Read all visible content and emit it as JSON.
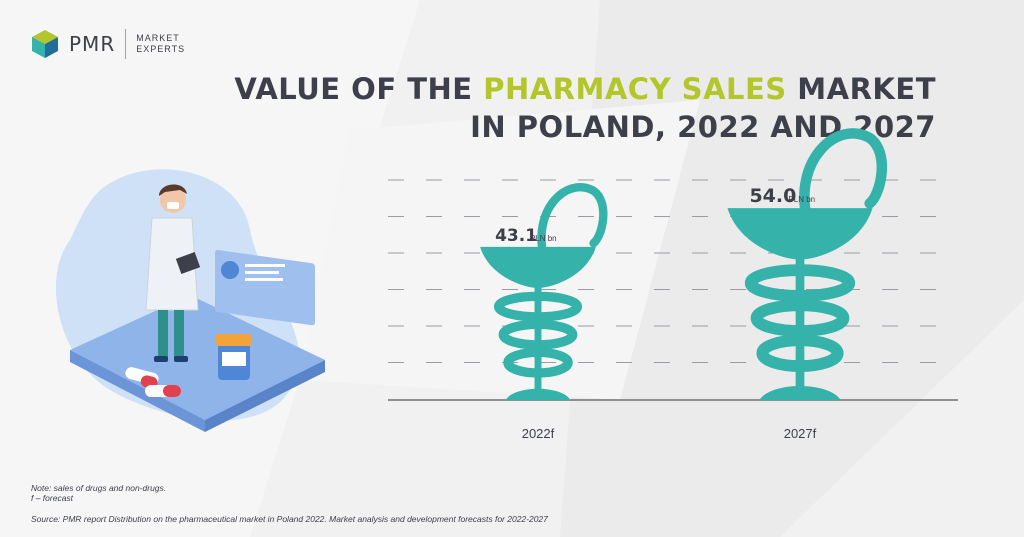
{
  "brand": {
    "logo_name": "PMR",
    "logo_sub_line1": "MARKET",
    "logo_sub_line2": "EXPERTS"
  },
  "title": {
    "line1_pre": "VALUE OF THE ",
    "line1_highlight": "PHARMACY SALES",
    "line1_post": " MARKET",
    "line2": "IN POLAND, 2022 AND 2027"
  },
  "chart_data": {
    "type": "bar",
    "categories": [
      "2022f",
      "2027f"
    ],
    "values": [
      43.1,
      54.0
    ],
    "value_labels": [
      "43.1",
      "54.0"
    ],
    "unit": "PLN bn",
    "title": "VALUE OF THE PHARMACY SALES MARKET IN POLAND, 2022 AND 2027",
    "xlabel": "",
    "ylabel": "",
    "ylim": [
      0,
      60
    ],
    "grid": true,
    "legend": "none",
    "mark_color": "#35b3aa",
    "highlight_color": "#b3c62b"
  },
  "notes": {
    "note_line1": "Note: sales of drugs and non-drugs.",
    "note_line2": "f – forecast",
    "source": "Source: PMR report Distribution on the pharmaceutical market in Poland 2022. Market analysis and development forecasts for 2022-2027"
  }
}
